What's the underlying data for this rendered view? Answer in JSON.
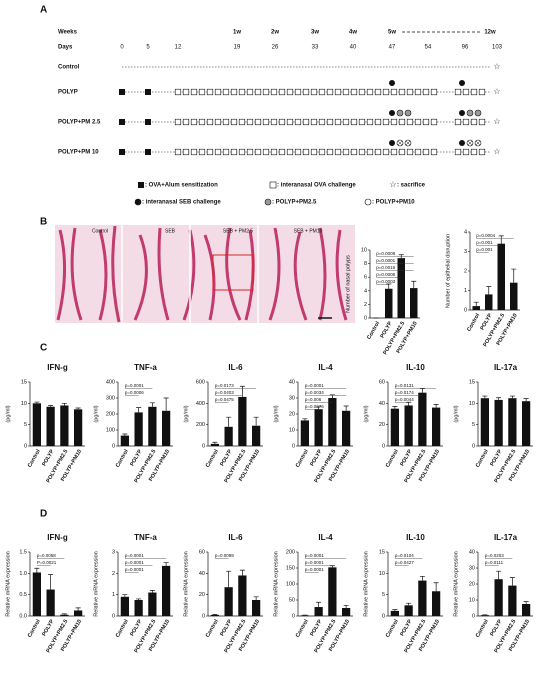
{
  "panels": [
    "A",
    "B",
    "C",
    "D"
  ],
  "timeline": {
    "weeks_label": "Weeks",
    "days_label": "Days",
    "weeks": [
      "1w",
      "2w",
      "3w",
      "4w",
      "5w",
      "12w"
    ],
    "days": [
      "0",
      "5",
      "12",
      "19",
      "26",
      "33",
      "40",
      "47",
      "54",
      "96",
      "103"
    ],
    "groups": [
      "Control",
      "POLYP",
      "POLYP+PM 2.5",
      "POLYP+PM 10"
    ],
    "legend": [
      ": OVA+Alum sensitization",
      ": interanasal OVA challenge",
      ": sacrifice",
      ": interanasal SEB challenge",
      ": POLYP+PM2.5",
      ": POLYP+PM10"
    ]
  },
  "histology": [
    "Control",
    "SEB",
    "SEB + PM2.5",
    "SEB + PM10"
  ],
  "chart_data": [
    {
      "type": "bar",
      "ylabel": "Number of nasal polyps",
      "categories": [
        "Control",
        "POLYP",
        "POLYP+PM2.5",
        "POLYP+PM10"
      ],
      "values": [
        0,
        4.3,
        8.8,
        4.4
      ],
      "errors": [
        0,
        0.7,
        0.5,
        1.0
      ],
      "color": "#111111",
      "ylim": [
        0,
        10
      ],
      "yticks": [
        0,
        2,
        4,
        6,
        8,
        10
      ],
      "annotations": [
        "p=0.0008",
        "p=0.0001",
        "p=0.0016",
        "p=0.0008",
        "p=0.0003"
      ]
    },
    {
      "type": "bar",
      "ylabel": "Number of epithelial disruption",
      "categories": [
        "Control",
        "POLYP",
        "POLYP+PM2.5",
        "POLYP+PM10"
      ],
      "values": [
        0.2,
        0.8,
        3.4,
        1.4
      ],
      "errors": [
        0.2,
        0.4,
        0.4,
        0.7
      ],
      "color": "#111111",
      "ylim": [
        0,
        4
      ],
      "yticks": [
        0,
        1,
        2,
        3,
        4
      ],
      "annotations": [
        "p=0.0004",
        "p=0.001",
        "p=0.001"
      ]
    },
    {
      "type": "bar",
      "title": "IFN-g",
      "ylabel": "(pg/ml)",
      "categories": [
        "Control",
        "POLYP",
        "POLYP+PM2.5",
        "POLYP+PM10"
      ],
      "values": [
        10,
        9.2,
        9.5,
        8.6
      ],
      "errors": [
        0.3,
        0.3,
        0.5,
        0.3
      ],
      "color": "#111111",
      "ylim": [
        0,
        15
      ],
      "yticks": [
        0,
        5,
        10,
        15
      ],
      "annotations": []
    },
    {
      "type": "bar",
      "title": "TNF-a",
      "ylabel": "(pg/ml)",
      "categories": [
        "Control",
        "POLYP",
        "POLYP+PM2.5",
        "POLYP+PM10"
      ],
      "values": [
        65,
        210,
        245,
        220
      ],
      "errors": [
        10,
        30,
        25,
        80
      ],
      "color": "#111111",
      "ylim": [
        0,
        400
      ],
      "yticks": [
        0,
        100,
        200,
        300,
        400
      ],
      "annotations": [
        "p=0.0001",
        "p=0.0006"
      ]
    },
    {
      "type": "bar",
      "title": "IL-6",
      "ylabel": "(pg/ml)",
      "categories": [
        "Control",
        "POLYP",
        "POLYP+PM2.5",
        "POLYP+PM10"
      ],
      "values": [
        20,
        180,
        460,
        190
      ],
      "errors": [
        15,
        90,
        100,
        80
      ],
      "color": "#111111",
      "ylim": [
        0,
        600
      ],
      "yticks": [
        0,
        200,
        400,
        600
      ],
      "annotations": [
        "p=0.0173",
        "p=0.0403",
        "p=0.0475"
      ]
    },
    {
      "type": "bar",
      "title": "IL-4",
      "ylabel": "(pg/ml)",
      "categories": [
        "Control",
        "POLYP",
        "POLYP+PM2.5",
        "POLYP+PM10"
      ],
      "values": [
        16,
        23,
        30,
        22
      ],
      "errors": [
        1,
        1.5,
        2,
        3
      ],
      "color": "#111111",
      "ylim": [
        0,
        40
      ],
      "yticks": [
        0,
        10,
        20,
        30,
        40
      ],
      "annotations": [
        "p=0.0001",
        "p=0.0034",
        "p=0.006",
        "p=0.0276"
      ]
    },
    {
      "type": "bar",
      "title": "IL-10",
      "ylabel": "(pg/ml)",
      "categories": [
        "Control",
        "POLYP",
        "POLYP+PM2.5",
        "POLYP+PM10"
      ],
      "values": [
        35,
        38,
        50,
        36
      ],
      "errors": [
        2,
        3,
        4,
        3
      ],
      "color": "#111111",
      "ylim": [
        0,
        60
      ],
      "yticks": [
        0,
        20,
        40,
        60
      ],
      "annotations": [
        "p=0.0131",
        "p=0.0174",
        "p=0.0044"
      ]
    },
    {
      "type": "bar",
      "title": "IL-17a",
      "ylabel": "(pg/ml)",
      "categories": [
        "Control",
        "POLYP",
        "POLYP+PM2.5",
        "POLYP+PM10"
      ],
      "values": [
        11.2,
        10.8,
        11.2,
        10.5
      ],
      "errors": [
        0.5,
        0.5,
        0.5,
        0.6
      ],
      "color": "#111111",
      "ylim": [
        0,
        15
      ],
      "yticks": [
        0,
        5,
        10,
        15
      ],
      "annotations": []
    },
    {
      "type": "bar",
      "title": "IFN-g",
      "ylabel": "Relative mRNA expression",
      "categories": [
        "Control",
        "POLYP",
        "POLYP+PM2.5",
        "POLYP+PM10"
      ],
      "values": [
        1.02,
        0.62,
        0.03,
        0.13
      ],
      "errors": [
        0.1,
        0.35,
        0.02,
        0.06
      ],
      "color": "#111111",
      "ylim": [
        0,
        1.5
      ],
      "yticks": [
        {
          "value": 0,
          "label": "0.0"
        },
        {
          "value": 0.5,
          "label": "0.5"
        },
        {
          "value": 1,
          "label": "1.0"
        },
        {
          "value": 1.5,
          "label": "1.5"
        }
      ],
      "annotations": [
        "p=0.0058",
        "P=0.0021"
      ]
    },
    {
      "type": "bar",
      "title": "TNF-a",
      "ylabel": "Relative mRNA expression",
      "categories": [
        "Control",
        "POLYP",
        "POLYP+PM2.5",
        "POLYP+PM10"
      ],
      "values": [
        0.9,
        0.75,
        1.1,
        2.35
      ],
      "errors": [
        0.1,
        0.05,
        0.1,
        0.15
      ],
      "color": "#111111",
      "ylim": [
        0,
        3
      ],
      "yticks": [
        0,
        1,
        2,
        3
      ],
      "annotations": [
        "p=0.0001",
        "p=0.0001",
        "p=0.0001"
      ]
    },
    {
      "type": "bar",
      "title": "IL-6",
      "ylabel": "Relative mRNA expression",
      "categories": [
        "Control",
        "POLYP",
        "POLYP+PM2.5",
        "POLYP+PM10"
      ],
      "values": [
        1,
        27,
        38,
        15
      ],
      "errors": [
        0.5,
        15,
        5,
        3
      ],
      "color": "#111111",
      "ylim": [
        0,
        60
      ],
      "yticks": [
        0,
        20,
        40,
        60
      ],
      "annotations": [
        "p=0.0099"
      ]
    },
    {
      "type": "bar",
      "title": "IL-4",
      "ylabel": "Relative mRNA expression",
      "categories": [
        "Control",
        "POLYP",
        "POLYP+PM2.5",
        "POLYP+PM10"
      ],
      "values": [
        2,
        28,
        152,
        25
      ],
      "errors": [
        1,
        15,
        5,
        8
      ],
      "color": "#111111",
      "ylim": [
        0,
        200
      ],
      "yticks": [
        0,
        50,
        100,
        150,
        200
      ],
      "annotations": [
        "p=0.0001",
        "p=0.0001",
        "p=0.0001"
      ]
    },
    {
      "type": "bar",
      "title": "IL-10",
      "ylabel": "Relative mRNA expression",
      "categories": [
        "Control",
        "POLYP",
        "POLYP+PM2.5",
        "POLYP+PM10"
      ],
      "values": [
        1.2,
        2.5,
        8.3,
        5.8
      ],
      "errors": [
        0.3,
        0.5,
        1,
        2
      ],
      "color": "#111111",
      "ylim": [
        0,
        15
      ],
      "yticks": [
        0,
        5,
        10,
        15
      ],
      "annotations": [
        "p=0.0104",
        "p=0.0427"
      ]
    },
    {
      "type": "bar",
      "title": "IL-17a",
      "ylabel": "Relative mRNA expression",
      "categories": [
        "Control",
        "POLYP",
        "POLYP+PM2.5",
        "POLYP+PM10"
      ],
      "values": [
        0.5,
        23,
        19,
        7.5
      ],
      "errors": [
        0.2,
        5,
        5,
        1.5
      ],
      "color": "#111111",
      "ylim": [
        0,
        40
      ],
      "yticks": [
        0,
        10,
        20,
        30,
        40
      ],
      "annotations": [
        "p=0.0203",
        "p=0.0111"
      ]
    }
  ]
}
